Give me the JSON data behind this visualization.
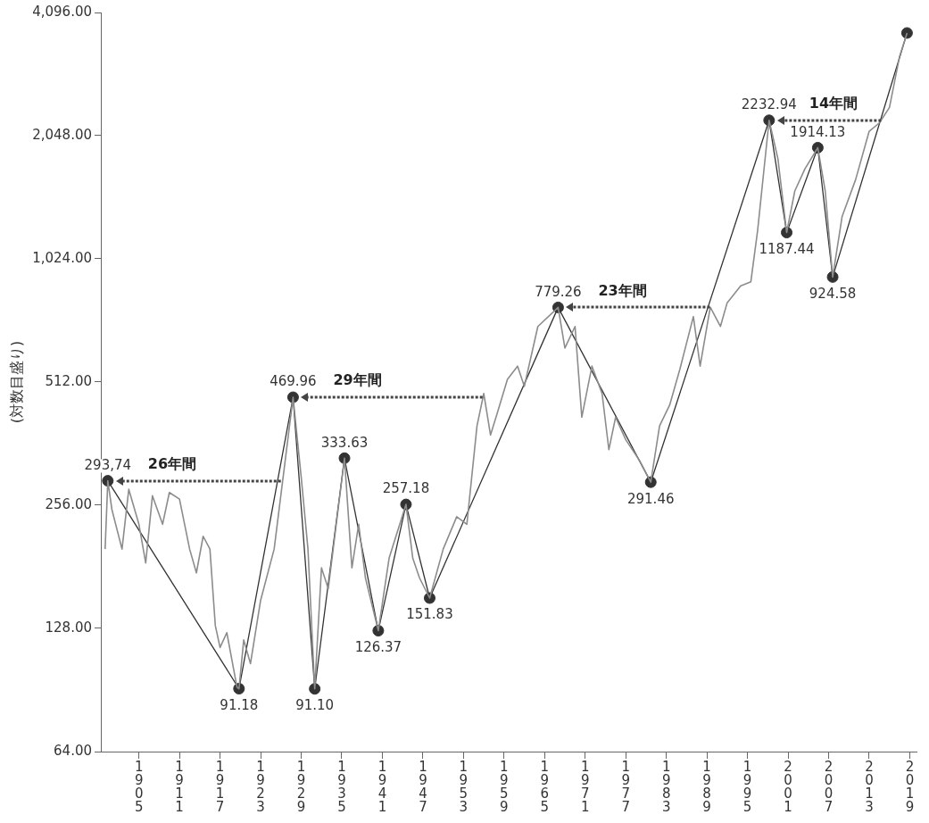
{
  "chart_data": {
    "type": "line",
    "ylabel": "(対数目盛り)",
    "log": true,
    "grid": false,
    "legend": false,
    "marker": "circle",
    "xlim": [
      1899.5,
      2020
    ],
    "xticks": [
      1905,
      1911,
      1917,
      1923,
      1929,
      1935,
      1941,
      1947,
      1953,
      1959,
      1965,
      1971,
      1977,
      1983,
      1989,
      1995,
      2001,
      2007,
      2013,
      2019
    ],
    "ylim": [
      64,
      4096
    ],
    "yticks": [
      {
        "value": 64,
        "label": "64.00"
      },
      {
        "value": 128,
        "label": "128.00"
      },
      {
        "value": 256,
        "label": "256.00"
      },
      {
        "value": 512,
        "label": "512.00"
      },
      {
        "value": 1024,
        "label": "1,024.00"
      },
      {
        "value": 2048,
        "label": "2,048.00"
      },
      {
        "value": 4096,
        "label": "4,096.00"
      }
    ],
    "series": [
      {
        "color": "#8c8c8c",
        "marker": "none",
        "x": [
          1900,
          1900.4,
          1901,
          1902.5,
          1903.5,
          1905,
          1906,
          1907,
          1908.5,
          1909.5,
          1911,
          1912.5,
          1913.5,
          1914.5,
          1915.5,
          1916.3,
          1917,
          1918,
          1919.5,
          1919.8,
          1920.5,
          1921.5,
          1923,
          1925,
          1927.8,
          1929,
          1930,
          1931,
          1932,
          1933,
          1935.4,
          1936.5,
          1937.5,
          1938.5,
          1940.4,
          1942,
          1944.5,
          1945.5,
          1946.5,
          1948,
          1950,
          1952,
          1953.5,
          1955,
          1956,
          1957,
          1958,
          1959.5,
          1961,
          1962,
          1964,
          1967,
          1968,
          1969.5,
          1970.5,
          1972,
          1973.5,
          1974.5,
          1975.5,
          1977,
          1979,
          1980.7,
          1982,
          1983.5,
          1985,
          1987,
          1988,
          1989.5,
          1991,
          1992,
          1994,
          1995.5,
          1996.5,
          1998.2,
          1999.5,
          2000.8,
          2002,
          2003.5,
          2005.4,
          2006.5,
          2007.6,
          2009,
          2011,
          2013,
          2014.5,
          2016,
          2017.5,
          2018.6
        ],
        "values": [
          200,
          293.74,
          250,
          200,
          280,
          230,
          185,
          270,
          230,
          275,
          265,
          200,
          175,
          215,
          200,
          130,
          115,
          125,
          92,
          91.18,
          120,
          105,
          150,
          200,
          469.96,
          300,
          200,
          91.1,
          180,
          160,
          333.63,
          180,
          230,
          170,
          126.37,
          190,
          257.18,
          190,
          170,
          151.83,
          200,
          240,
          230,
          400,
          480,
          380,
          430,
          520,
          560,
          500,
          700,
          779.26,
          620,
          700,
          420,
          560,
          480,
          350,
          420,
          370,
          330,
          291.46,
          400,
          450,
          550,
          740,
          560,
          780,
          700,
          800,
          880,
          900,
          1200,
          2232.94,
          1800,
          1187.44,
          1500,
          1700,
          1914.13,
          1500,
          924.58,
          1300,
          1600,
          2100,
          2200,
          2400,
          3200,
          3650
        ]
      },
      {
        "color": "#333333",
        "x": [
          1900.4,
          1919.8,
          1927.8,
          1931,
          1935.4,
          1940.4,
          1944.5,
          1948,
          1967,
          1980.7,
          1998.2,
          2000.8,
          2005.4,
          2007.6,
          2018.6
        ],
        "values": [
          293.74,
          91.18,
          469.96,
          91.1,
          333.63,
          126.37,
          257.18,
          151.83,
          779.26,
          291.46,
          2232.94,
          1187.44,
          1914.13,
          924.58,
          3650
        ],
        "value_labels": [
          "293,74",
          "91.18",
          "469.96",
          "91.10",
          "333.63",
          "126.37",
          "257.18",
          "151.83",
          "779.26",
          "291.46",
          "2232.94",
          "1187.44",
          "1914.13",
          "924.58",
          null
        ]
      }
    ],
    "annotations": [
      {
        "text": "26年間",
        "x": 1900.4,
        "y": 293.74
      },
      {
        "text": "29年間",
        "x": 1927.8,
        "y": 469.96
      },
      {
        "text": "23年間",
        "x": 1967,
        "y": 779.26
      },
      {
        "text": "14年間",
        "x": 1998.2,
        "y": 2232.94
      }
    ]
  }
}
